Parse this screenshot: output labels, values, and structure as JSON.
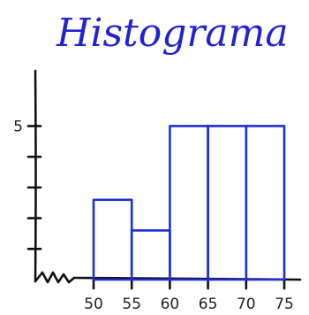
{
  "chart_data": {
    "type": "bar",
    "title": "Histograma",
    "bins": [
      {
        "from": 50,
        "to": 55,
        "value": 2.6
      },
      {
        "from": 55,
        "to": 60,
        "value": 1.6
      },
      {
        "from": 60,
        "to": 65,
        "value": 5
      },
      {
        "from": 65,
        "to": 70,
        "value": 5
      },
      {
        "from": 70,
        "to": 75,
        "value": 5
      }
    ],
    "x_tick_labels": [
      "50",
      "55",
      "60",
      "65",
      "70",
      "75"
    ],
    "y_tick_labels": [
      {
        "value": 5,
        "label": "5"
      }
    ],
    "y_ticks": [
      1,
      2,
      3,
      4,
      5
    ],
    "ylim": [
      0,
      6.8
    ],
    "grid": false,
    "axis_break": true,
    "colors": {
      "bars": "#1f2fd6",
      "axes": "#111111",
      "title": "#2222d0"
    }
  }
}
